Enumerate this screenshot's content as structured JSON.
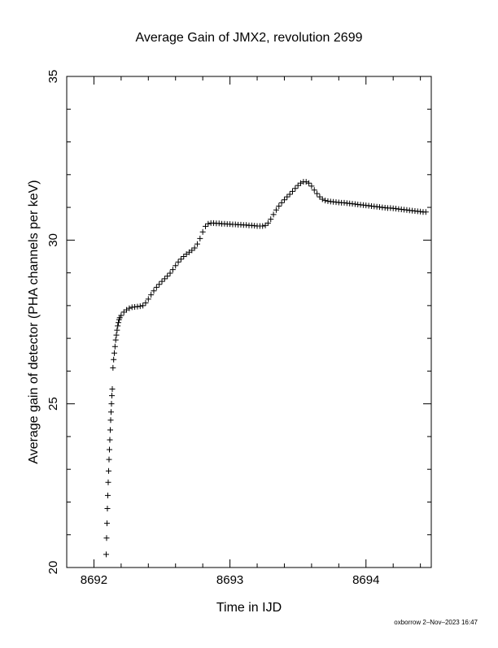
{
  "chart_data": {
    "type": "scatter",
    "title": "Average Gain of JMX2, revolution 2699",
    "x_label": "Time in IJD",
    "y_label": "Average gain of detector (PHA channels per keV)",
    "footer": "oxborrow  2–Nov–2023 16:47",
    "xlim": [
      8691.8,
      8694.48
    ],
    "ylim": [
      20,
      35
    ],
    "xticks": [
      8692,
      8693,
      8694
    ],
    "yticks": [
      20,
      25,
      30,
      35
    ],
    "xminorticks": [
      8692.2,
      8692.4,
      8692.6,
      8692.8,
      8693.2,
      8693.4,
      8693.6,
      8693.8,
      8694.2,
      8694.4
    ],
    "yminorticks": [
      21,
      22,
      23,
      24,
      26,
      27,
      28,
      29,
      31,
      32,
      33,
      34
    ],
    "marker": "+",
    "color": "#000000",
    "x": [
      8692.09,
      8692.093,
      8692.096,
      8692.099,
      8692.102,
      8692.105,
      8692.108,
      8692.111,
      8692.114,
      8692.117,
      8692.12,
      8692.123,
      8692.126,
      8692.129,
      8692.132,
      8692.135,
      8692.14,
      8692.145,
      8692.15,
      8692.155,
      8692.16,
      8692.165,
      8692.17,
      8692.175,
      8692.18,
      8692.185,
      8692.19,
      8692.2,
      8692.22,
      8692.24,
      8692.26,
      8692.28,
      8692.3,
      8692.32,
      8692.34,
      8692.36,
      8692.38,
      8692.4,
      8692.42,
      8692.44,
      8692.46,
      8692.48,
      8692.5,
      8692.52,
      8692.54,
      8692.56,
      8692.58,
      8692.6,
      8692.62,
      8692.64,
      8692.66,
      8692.68,
      8692.7,
      8692.72,
      8692.74,
      8692.76,
      8692.78,
      8692.8,
      8692.82,
      8692.84,
      8692.86,
      8692.88,
      8692.9,
      8692.92,
      8692.94,
      8692.96,
      8692.98,
      8693.0,
      8693.02,
      8693.04,
      8693.06,
      8693.08,
      8693.1,
      8693.12,
      8693.14,
      8693.16,
      8693.18,
      8693.2,
      8693.22,
      8693.24,
      8693.26,
      8693.28,
      8693.3,
      8693.32,
      8693.34,
      8693.36,
      8693.38,
      8693.4,
      8693.42,
      8693.44,
      8693.46,
      8693.48,
      8693.5,
      8693.52,
      8693.54,
      8693.56,
      8693.58,
      8693.6,
      8693.62,
      8693.64,
      8693.66,
      8693.68,
      8693.7,
      8693.72,
      8693.74,
      8693.76,
      8693.78,
      8693.8,
      8693.82,
      8693.84,
      8693.86,
      8693.88,
      8693.9,
      8693.92,
      8693.94,
      8693.96,
      8693.98,
      8694.0,
      8694.02,
      8694.04,
      8694.06,
      8694.08,
      8694.1,
      8694.12,
      8694.14,
      8694.16,
      8694.18,
      8694.2,
      8694.22,
      8694.24,
      8694.26,
      8694.28,
      8694.3,
      8694.32,
      8694.34,
      8694.36,
      8694.38,
      8694.4,
      8694.42,
      8694.44
    ],
    "values": [
      20.4,
      20.9,
      21.35,
      21.8,
      22.2,
      22.6,
      22.95,
      23.3,
      23.6,
      23.9,
      24.2,
      24.5,
      24.75,
      25.0,
      25.25,
      25.45,
      26.1,
      26.35,
      26.55,
      26.75,
      26.95,
      27.1,
      27.25,
      27.38,
      27.48,
      27.57,
      27.63,
      27.7,
      27.8,
      27.87,
      27.92,
      27.95,
      27.96,
      27.97,
      27.98,
      28.0,
      28.08,
      28.2,
      28.33,
      28.45,
      28.56,
      28.65,
      28.74,
      28.82,
      28.9,
      28.99,
      29.1,
      29.22,
      29.33,
      29.42,
      29.5,
      29.57,
      29.63,
      29.69,
      29.76,
      29.88,
      30.05,
      30.25,
      30.42,
      30.5,
      30.52,
      30.52,
      30.51,
      30.51,
      30.5,
      30.5,
      30.49,
      30.49,
      30.48,
      30.48,
      30.47,
      30.47,
      30.46,
      30.46,
      30.45,
      30.45,
      30.44,
      30.43,
      30.43,
      30.43,
      30.45,
      30.52,
      30.64,
      30.78,
      30.92,
      31.04,
      31.14,
      31.23,
      31.32,
      31.4,
      31.49,
      31.58,
      31.67,
      31.74,
      31.78,
      31.78,
      31.74,
      31.65,
      31.53,
      31.42,
      31.32,
      31.25,
      31.21,
      31.19,
      31.18,
      31.17,
      31.16,
      31.15,
      31.14,
      31.14,
      31.13,
      31.12,
      31.11,
      31.1,
      31.09,
      31.08,
      31.07,
      31.06,
      31.05,
      31.04,
      31.03,
      31.02,
      31.01,
      31.0,
      30.99,
      30.98,
      30.98,
      30.97,
      30.96,
      30.95,
      30.94,
      30.93,
      30.92,
      30.91,
      30.9,
      30.89,
      30.88,
      30.87,
      30.86,
      30.86
    ]
  }
}
